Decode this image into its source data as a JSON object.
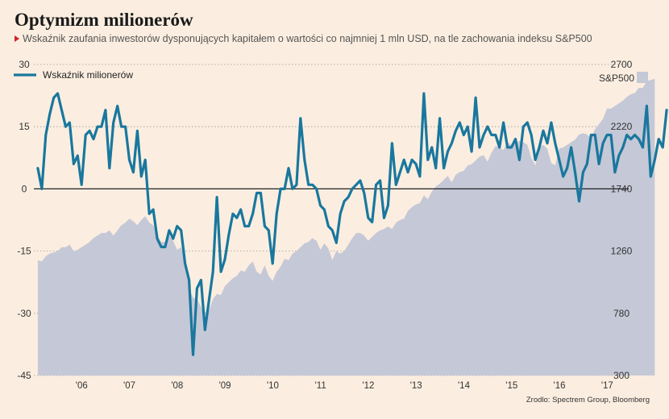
{
  "title": "Optymizm milionerów",
  "subtitle": "Wskaźnik zaufania inwestorów dysponujących kapitałem o wartości co najmniej 1 mln USD, na tle zachowania indeksu S&P500",
  "source": "Zrodlo: Spectrem Group, Bloomberg",
  "colors": {
    "background": "#fbeee0",
    "line": "#19779e",
    "area": "#c5c8d6",
    "zero_line": "#222222"
  },
  "chart_data": {
    "type": "line",
    "x_start_year": 2005.583,
    "x_step_years": 0.0833,
    "xlim": [
      2005.5,
      2017.95
    ],
    "x_tick_labels": [
      "'06",
      "'07",
      "'08",
      "'09",
      "'10",
      "'11",
      "'12",
      "'13",
      "'14",
      "'15",
      "'16",
      "'17"
    ],
    "x_tick_years": [
      2006,
      2007,
      2008,
      2009,
      2010,
      2011,
      2012,
      2013,
      2014,
      2015,
      2016,
      2017
    ],
    "y_left": {
      "ylim": [
        -45,
        30
      ],
      "ticks": [
        30,
        15,
        0,
        -15,
        -30,
        -45
      ]
    },
    "y_right": {
      "label": "S&P500",
      "ylim": [
        300,
        2700
      ],
      "ticks": [
        2700,
        2220,
        1740,
        1260,
        780,
        300
      ]
    },
    "series": [
      {
        "name": "Wskaźnik milionerów",
        "axis": "left",
        "style": "line",
        "values": [
          5,
          0,
          13,
          18,
          22,
          23,
          19,
          15,
          16,
          6,
          8,
          1,
          13,
          14,
          12,
          15,
          15,
          19,
          5,
          16,
          20,
          15,
          15,
          7,
          4,
          14,
          3,
          7,
          -6,
          -5,
          -12,
          -14,
          -14,
          -10,
          -12,
          -9,
          -10,
          -18,
          -22,
          -40,
          -24,
          -22,
          -34,
          -27,
          -20,
          -2,
          -20,
          -17,
          -11,
          -6,
          -7,
          -5,
          -9,
          -9,
          -6,
          -1,
          -1,
          -9,
          -10,
          -18,
          -6,
          0,
          0,
          5,
          0,
          1,
          17,
          7,
          1,
          1,
          0,
          -4,
          -5,
          -9,
          -10,
          -13,
          -6,
          -3,
          -2,
          0,
          1,
          2,
          -1,
          -7,
          -8,
          1,
          2,
          -7,
          -4,
          11,
          1,
          4,
          7,
          4,
          7,
          6,
          3,
          23,
          7,
          10,
          5,
          17,
          5,
          9,
          11,
          14,
          16,
          13,
          15,
          9,
          22,
          10,
          13,
          15,
          13,
          13,
          10,
          16,
          10,
          10,
          12,
          7,
          15,
          16,
          13,
          7,
          10,
          14,
          11,
          16,
          11,
          7,
          3,
          5,
          10,
          4,
          -3,
          4,
          6,
          13,
          13,
          6,
          11,
          13,
          13,
          4,
          8,
          10,
          13,
          12,
          13,
          12,
          10,
          20,
          3,
          7,
          12,
          10,
          19
        ]
      },
      {
        "name": "S&P500",
        "axis": "right",
        "style": "area",
        "values": [
          1190,
          1180,
          1220,
          1240,
          1250,
          1260,
          1290,
          1290,
          1310,
          1260,
          1270,
          1290,
          1310,
          1330,
          1360,
          1380,
          1400,
          1400,
          1420,
          1380,
          1420,
          1460,
          1480,
          1510,
          1490,
          1460,
          1500,
          1530,
          1480,
          1460,
          1380,
          1330,
          1330,
          1380,
          1340,
          1270,
          1290,
          1170,
          970,
          900,
          890,
          830,
          740,
          800,
          890,
          930,
          920,
          990,
          1020,
          1050,
          1070,
          1110,
          1100,
          1150,
          1180,
          1100,
          1080,
          1150,
          1070,
          1030,
          1100,
          1140,
          1200,
          1190,
          1240,
          1260,
          1290,
          1320,
          1330,
          1360,
          1340,
          1270,
          1320,
          1280,
          1190,
          1260,
          1240,
          1260,
          1310,
          1360,
          1400,
          1400,
          1380,
          1340,
          1370,
          1400,
          1420,
          1430,
          1450,
          1430,
          1480,
          1500,
          1510,
          1570,
          1600,
          1620,
          1630,
          1690,
          1660,
          1720,
          1760,
          1780,
          1810,
          1840,
          1790,
          1850,
          1870,
          1880,
          1920,
          1930,
          1960,
          1990,
          2000,
          1950,
          2020,
          2070,
          2060,
          2040,
          2100,
          2080,
          2090,
          2110,
          2100,
          2080,
          1980,
          1920,
          2060,
          2080,
          2050,
          1940,
          1920,
          2050,
          2060,
          2080,
          2100,
          2120,
          2160,
          2170,
          2160,
          2130,
          2200,
          2240,
          2280,
          2360,
          2360,
          2380,
          2400,
          2420,
          2450,
          2470,
          2480,
          2520,
          2520,
          2570,
          2580,
          2590
        ]
      }
    ]
  }
}
